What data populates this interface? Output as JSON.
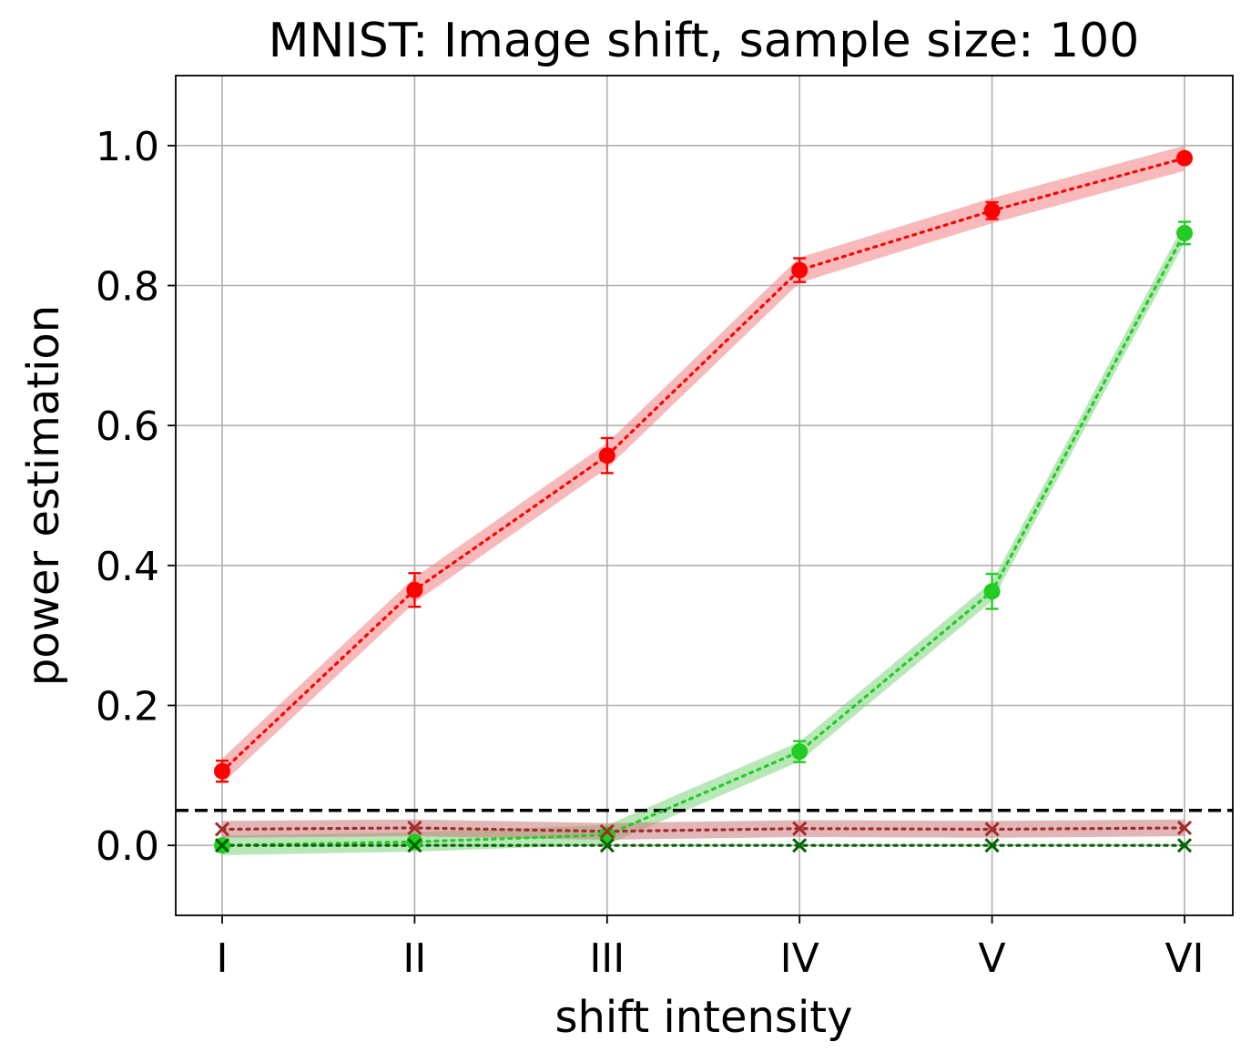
{
  "chart_data": {
    "type": "line",
    "title": "MNIST: Image shift, sample size: 100",
    "xlabel": "shift intensity",
    "ylabel": "power estimation",
    "categories": [
      "I",
      "II",
      "III",
      "IV",
      "V",
      "VI"
    ],
    "ylim": [
      -0.1,
      1.1
    ],
    "yticks": [
      "0.0",
      "0.2",
      "0.4",
      "0.6",
      "0.8",
      "1.0"
    ],
    "grid": true,
    "reference_line": {
      "y": 0.05,
      "style": "dashed",
      "color": "#000000"
    },
    "series": [
      {
        "color": "#ff0000",
        "marker": "circle",
        "values": [
          0.106,
          0.365,
          0.557,
          0.822,
          0.907,
          0.982
        ],
        "errors": [
          0.015,
          0.024,
          0.025,
          0.017,
          0.012,
          0.004
        ],
        "band": 0.018,
        "band_color": "#f08080"
      },
      {
        "color": "#22cc22",
        "marker": "circle",
        "values": [
          0.0,
          0.005,
          0.015,
          0.134,
          0.363,
          0.875
        ],
        "errors": [
          0.002,
          0.003,
          0.004,
          0.015,
          0.025,
          0.016
        ],
        "band": 0.014,
        "band_color": "#7ed47e"
      },
      {
        "color": "#a52a2a",
        "marker": "x",
        "values": [
          0.023,
          0.025,
          0.02,
          0.024,
          0.023,
          0.025
        ],
        "band": 0.012,
        "band_color": "#c97a7a"
      },
      {
        "color": "#006400",
        "marker": "x",
        "values": [
          0.0,
          0.0,
          0.0,
          0.0,
          0.0,
          0.0
        ],
        "band": 0.0,
        "band_color": "#7ab07a"
      }
    ]
  }
}
